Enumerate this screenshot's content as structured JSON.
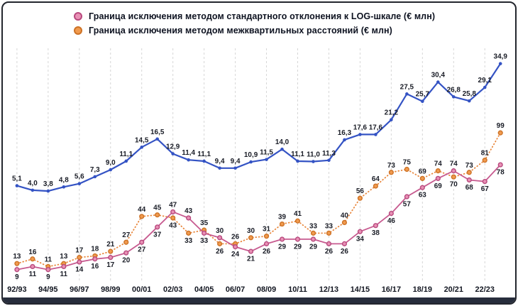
{
  "legend": {
    "items": [
      {
        "label": "Граница исключения методом стандартного отклонения к LOG-шкале (€ млн)",
        "color": "#e891b5",
        "ring": "#b8497e"
      },
      {
        "label": "Граница исключения методом межквартильных расстояний (€ млн)",
        "color": "#f09a4e",
        "ring": "#cd7226"
      }
    ]
  },
  "chart_data": {
    "type": "line",
    "y_axis_visible": false,
    "grid": "vertical-dashed",
    "legend_position": "top-left",
    "categories": [
      "92/93",
      "93/94",
      "94/95",
      "95/96",
      "96/97",
      "97/98",
      "98/99",
      "99/00",
      "00/01",
      "01/02",
      "02/03",
      "03/04",
      "04/05",
      "05/06",
      "06/07",
      "07/08",
      "08/09",
      "09/10",
      "10/11",
      "11/12",
      "12/13",
      "13/14",
      "14/15",
      "15/16",
      "16/17",
      "17/18",
      "18/19",
      "19/20",
      "20/21",
      "21/22",
      "22/23",
      "23/24"
    ],
    "x_tick_labels": [
      "92/93",
      "94/95",
      "96/97",
      "98/99",
      "00/01",
      "02/03",
      "04/05",
      "06/07",
      "08/09",
      "10/11",
      "12/13",
      "14/15",
      "16/17",
      "18/19",
      "20/21",
      "22/23"
    ],
    "series": [
      {
        "id": "blue",
        "name": "",
        "color": "#3453c4",
        "line_style": "solid",
        "value_scale": "upper",
        "label_side": "above",
        "values": [
          5.1,
          4.0,
          3.8,
          4.8,
          5.6,
          7.3,
          9.0,
          11.1,
          14.5,
          16.5,
          12.9,
          11.4,
          11.1,
          9.4,
          9.4,
          10.9,
          11.5,
          14.0,
          11.1,
          11.0,
          11.3,
          16.3,
          17.6,
          17.6,
          21.2,
          27.5,
          25.7,
          30.4,
          26.8,
          25.8,
          29.1,
          34.9
        ],
        "labels": [
          "5,1",
          "4,0",
          "3,8",
          "4,8",
          "5,6",
          "7,3",
          "9,0",
          "11,1",
          "14,5",
          "16,5",
          "12,9",
          "11,4",
          "11,1",
          "9,4",
          "9,4",
          "10,9",
          "11,5",
          "14,0",
          "11,1",
          "11,0",
          "11,3",
          "16,3",
          "17,6",
          "17,6",
          "21,2",
          "27,5",
          "25,7",
          "30,4",
          "26,8",
          "25,8",
          "29,1",
          "34,9"
        ]
      },
      {
        "id": "pink",
        "name": "Граница исключения методом стандартного отклонения к LOG-шкале (€ млн)",
        "color": "#c75a8f",
        "marker_fill": "#e891b5",
        "marker_ring": "#b8497e",
        "line_style": "solid",
        "value_scale": "lower",
        "label_side": "below",
        "values": [
          9,
          11,
          9,
          11,
          14,
          16,
          17,
          20,
          27,
          37,
          47,
          43,
          33,
          30,
          24,
          21,
          26,
          29,
          29,
          29,
          26,
          26,
          34,
          38,
          46,
          57,
          63,
          69,
          74,
          68,
          67,
          78
        ],
        "labels": [
          "9",
          "11",
          "9",
          "11",
          "14",
          "16",
          "17",
          "20",
          "27",
          "37",
          "47",
          "43",
          "33",
          "30",
          "24",
          "21",
          "26",
          "29",
          "29",
          "29",
          "26",
          "26",
          "34",
          "38",
          "46",
          "57",
          "63",
          "69",
          "74",
          "68",
          "67",
          "78"
        ]
      },
      {
        "id": "orange",
        "name": "Граница исключения методом межквартильных расстояний (€ млн)",
        "color": "#e8873d",
        "marker_fill": "#f09a4e",
        "marker_ring": "#cd7226",
        "line_style": "dotted",
        "value_scale": "lower",
        "label_side": "above",
        "values": [
          13,
          16,
          11,
          13,
          17,
          18,
          21,
          27,
          44,
          45,
          43,
          33,
          35,
          26,
          26,
          30,
          31,
          39,
          41,
          33,
          33,
          40,
          56,
          64,
          73,
          75,
          69,
          74,
          70,
          73,
          81,
          99
        ],
        "labels": [
          "13",
          "16",
          "11",
          "13",
          "17",
          "18",
          "21",
          "27",
          "44",
          "45",
          "43",
          "33",
          "35",
          "26",
          "26",
          "30",
          "31",
          "39",
          "41",
          "33",
          "33",
          "40",
          "56",
          "64",
          "73",
          "75",
          "69",
          "74",
          "70",
          "73",
          "81",
          "99"
        ]
      }
    ]
  }
}
